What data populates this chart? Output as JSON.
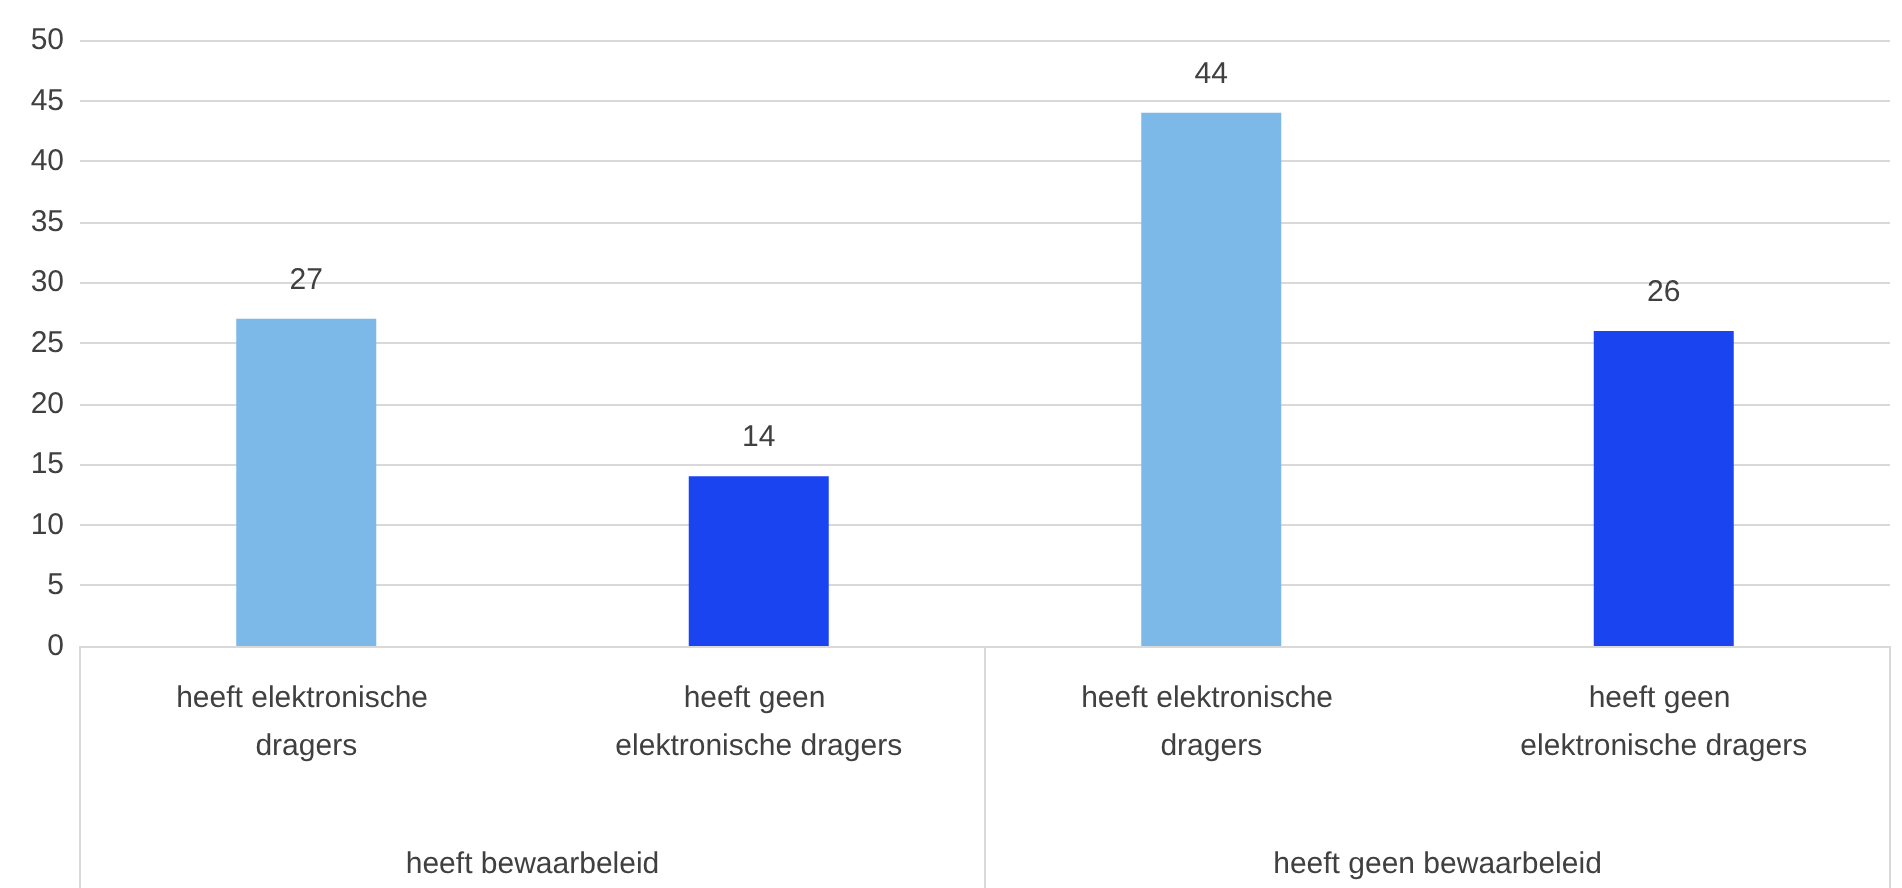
{
  "chart_data": {
    "type": "bar",
    "categories": [
      "heeft elektronische dragers",
      "heeft geen elektronische dragers",
      "heeft elektronische dragers",
      "heeft geen elektronische dragers"
    ],
    "values": [
      27,
      14,
      44,
      26
    ],
    "colors": [
      "#7cb9e8",
      "#1a44f0",
      "#7cb9e8",
      "#1a44f0"
    ],
    "annotations": [
      "heeft bewaarbeleid",
      "heeft geen bewaarbeleid"
    ],
    "ylim": [
      0,
      50
    ],
    "yticks": [
      0,
      5,
      10,
      15,
      20,
      25,
      30,
      35,
      40,
      45,
      50
    ],
    "grid": "y",
    "data_labels": true
  }
}
